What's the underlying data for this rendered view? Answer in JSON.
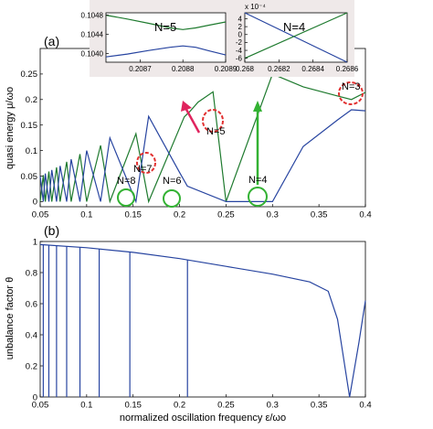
{
  "colors": {
    "green": "#1e7a2e",
    "blue": "#2744a0",
    "red": "#e23030",
    "inset_bg": "#efe9e9",
    "green_circle": "#33b233"
  },
  "chart_data": [
    {
      "id": "a",
      "type": "line",
      "panel_label": "(a)",
      "xlabel": "",
      "ylabel": "quasi energy μ/ωo",
      "xlim": [
        0.05,
        0.4
      ],
      "ylim": [
        -0.01,
        0.3
      ],
      "xticks": [
        "0.05",
        "0.1",
        "0.15",
        "0.2",
        "0.25",
        "0.3",
        "0.35",
        "0.4"
      ],
      "yticks": [
        "0",
        "0.05",
        "0.1",
        "0.15",
        "0.2",
        "0.25"
      ],
      "series": [
        {
          "color": "green",
          "points": [
            [
              0.05,
              0
            ],
            [
              0.0533,
              0.052
            ],
            [
              0.0555,
              0
            ],
            [
              0.0593,
              0.059
            ],
            [
              0.0625,
              0
            ],
            [
              0.0676,
              0.067
            ],
            [
              0.0714,
              0
            ],
            [
              0.0785,
              0.078
            ],
            [
              0.0833,
              0
            ],
            [
              0.0928,
              0.093
            ],
            [
              0.1,
              0
            ],
            [
              0.115,
              0.11
            ],
            [
              0.125,
              0
            ],
            [
              0.153,
              0.133
            ],
            [
              0.1667,
              0
            ],
            [
              0.205,
              0.166
            ],
            [
              0.2085,
              0.172
            ],
            [
              0.2089,
              0.172
            ],
            [
              0.22,
              0.195
            ],
            [
              0.236,
              0.215
            ],
            [
              0.25,
              0
            ],
            [
              0.3,
              0.25
            ],
            [
              0.333,
              0.225
            ],
            [
              0.37,
              0.207
            ],
            [
              0.385,
              0.2
            ],
            [
              0.4,
              0.214
            ]
          ]
        },
        {
          "color": "blue",
          "points": [
            [
              0.05,
              0.05
            ],
            [
              0.0533,
              0
            ],
            [
              0.0555,
              0.055
            ],
            [
              0.0593,
              0
            ],
            [
              0.0625,
              0.062
            ],
            [
              0.0676,
              0
            ],
            [
              0.0714,
              0.07
            ],
            [
              0.0785,
              0
            ],
            [
              0.0833,
              0.083
            ],
            [
              0.0928,
              0
            ],
            [
              0.1,
              0.1
            ],
            [
              0.115,
              0
            ],
            [
              0.125,
              0.125
            ],
            [
              0.153,
              0
            ],
            [
              0.1667,
              0.167
            ],
            [
              0.2,
              0.057
            ],
            [
              0.2085,
              0.03
            ],
            [
              0.2089,
              0.03
            ],
            [
              0.25,
              0
            ],
            [
              0.3,
              0
            ],
            [
              0.333,
              0.108
            ],
            [
              0.37,
              0.16
            ],
            [
              0.385,
              0.18
            ],
            [
              0.4,
              0.178
            ]
          ]
        }
      ],
      "annotations": [
        "N=8",
        "N=7",
        "N=6",
        "N=5",
        "N=4",
        "N=3"
      ]
    },
    {
      "id": "inset-n5",
      "type": "line",
      "label": "N=5",
      "xlim": [
        0.20862,
        0.2089
      ],
      "ylim": [
        0.10382,
        0.10485
      ],
      "xticks": [
        "0.2087",
        "0.2088",
        "0.2089"
      ],
      "yticks": [
        "0.1040",
        "0.1044",
        "0.1048"
      ],
      "series": [
        {
          "color": "green",
          "points": [
            [
              0.20862,
              0.1048
            ],
            [
              0.20867,
              0.10472
            ],
            [
              0.20872,
              0.10463
            ],
            [
              0.20877,
              0.104535
            ],
            [
              0.2088,
              0.1045
            ],
            [
              0.20883,
              0.104535
            ],
            [
              0.20886,
              0.10459
            ],
            [
              0.2089,
              0.10466
            ]
          ]
        },
        {
          "color": "blue",
          "points": [
            [
              0.20862,
              0.10393
            ],
            [
              0.20867,
              0.10399
            ],
            [
              0.20872,
              0.104065
            ],
            [
              0.20877,
              0.10413
            ],
            [
              0.2088,
              0.10416
            ],
            [
              0.20883,
              0.10413
            ],
            [
              0.20886,
              0.10406
            ],
            [
              0.2089,
              0.10397
            ]
          ]
        }
      ]
    },
    {
      "id": "inset-n4",
      "type": "line",
      "label": "N=4",
      "exponent_label": "x 10⁻⁴",
      "xlim": [
        0.268,
        0.2686
      ],
      "ylim": [
        -7,
        5.5
      ],
      "xticks": [
        "0.268",
        "0.2682",
        "0.2684",
        "0.2686"
      ],
      "yticks": [
        "4",
        "2",
        "0",
        "-2",
        "-4",
        "-6"
      ],
      "series": [
        {
          "color": "blue",
          "points": [
            [
              0.268,
              5.5
            ],
            [
              0.2686,
              -7
            ]
          ]
        },
        {
          "color": "green",
          "points": [
            [
              0.268,
              -6
            ],
            [
              0.2686,
              5.5
            ]
          ]
        }
      ]
    },
    {
      "id": "b",
      "type": "line",
      "panel_label": "(b)",
      "xlabel": "normalized oscillation frequency  ε/ωo",
      "ylabel": "unbalance factor θ",
      "xlim": [
        0.05,
        0.4
      ],
      "ylim": [
        0,
        1
      ],
      "xticks": [
        "0.05",
        "0.1",
        "0.15",
        "0.2",
        "0.25",
        "0.3",
        "0.35",
        "0.4"
      ],
      "yticks": [
        "0",
        "0.2",
        "0.4",
        "0.6",
        "0.8",
        "1"
      ],
      "series": [
        {
          "color": "blue",
          "points": [
            [
              0.05,
              0.98
            ],
            [
              0.1,
              0.96
            ],
            [
              0.15,
              0.93
            ],
            [
              0.2,
              0.89
            ],
            [
              0.25,
              0.84
            ],
            [
              0.3,
              0.79
            ],
            [
              0.34,
              0.74
            ],
            [
              0.36,
              0.68
            ],
            [
              0.37,
              0.5
            ],
            [
              0.383,
              0
            ],
            [
              0.393,
              0.35
            ],
            [
              0.4,
              0.62
            ]
          ]
        }
      ],
      "drops_x": [
        0.0533,
        0.0593,
        0.0676,
        0.0785,
        0.0928,
        0.1135,
        0.1465,
        0.2085
      ]
    }
  ]
}
